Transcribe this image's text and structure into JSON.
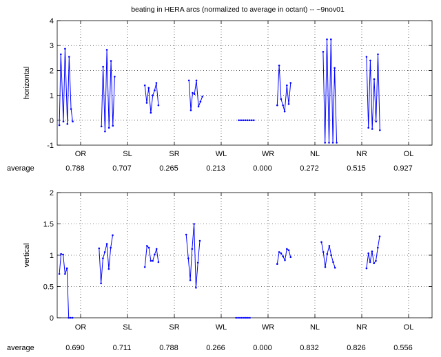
{
  "title": "beating in HERA arcs (normalized to average in octant) -- ~9nov01",
  "series_color": "#0000ff",
  "chart_data": [
    {
      "type": "line",
      "ylabel": "horizontal",
      "ylim": [
        -1,
        4
      ],
      "yticks": [
        -1,
        0,
        1,
        2,
        3,
        4
      ],
      "grid": true,
      "xlim": [
        0.5,
        8.5
      ],
      "categories": [
        "OR",
        "SL",
        "SR",
        "WL",
        "WR",
        "NL",
        "NR",
        "OL"
      ],
      "average_label": "average",
      "averages": [
        "0.788",
        "0.707",
        "0.265",
        "0.213",
        "0.000",
        "0.272",
        "0.515",
        "0.927"
      ],
      "segments": [
        [
          [
            0.545,
            -0.2
          ],
          [
            0.578,
            2.65
          ],
          [
            0.632,
            -0.05
          ],
          [
            0.668,
            2.87
          ],
          [
            0.718,
            -0.15
          ],
          [
            0.755,
            2.55
          ],
          [
            0.796,
            0.45
          ],
          [
            0.831,
            -0.05
          ]
        ],
        [
          [
            1.444,
            -0.25
          ],
          [
            1.48,
            2.15
          ],
          [
            1.52,
            -0.45
          ],
          [
            1.561,
            2.83
          ],
          [
            1.606,
            -0.3
          ],
          [
            1.649,
            2.38
          ],
          [
            1.688,
            -0.22
          ],
          [
            1.727,
            1.75
          ]
        ],
        [
          [
            2.371,
            1.4
          ],
          [
            2.412,
            0.7
          ],
          [
            2.453,
            1.3
          ],
          [
            2.498,
            0.3
          ],
          [
            2.539,
            1.0
          ],
          [
            2.58,
            1.2
          ],
          [
            2.616,
            1.5
          ],
          [
            2.661,
            0.6
          ]
        ],
        [
          [
            3.312,
            1.6
          ],
          [
            3.353,
            0.4
          ],
          [
            3.389,
            1.1
          ],
          [
            3.43,
            1.05
          ],
          [
            3.471,
            1.6
          ],
          [
            3.516,
            0.55
          ],
          [
            3.557,
            0.75
          ],
          [
            3.598,
            0.95
          ]
        ],
        [
          [
            4.376,
            0
          ],
          [
            4.424,
            0
          ],
          [
            4.469,
            0
          ],
          [
            4.514,
            0
          ],
          [
            4.559,
            0
          ],
          [
            4.605,
            0
          ],
          [
            4.65,
            0
          ],
          [
            4.695,
            0
          ]
        ],
        [
          [
            5.196,
            0.6
          ],
          [
            5.237,
            2.2
          ],
          [
            5.278,
            0.85
          ],
          [
            5.319,
            0.6
          ],
          [
            5.355,
            0.35
          ],
          [
            5.401,
            1.4
          ],
          [
            5.441,
            0.65
          ],
          [
            5.482,
            1.5
          ]
        ],
        [
          [
            6.175,
            2.75
          ],
          [
            6.216,
            -0.9
          ],
          [
            6.257,
            3.25
          ],
          [
            6.302,
            -0.9
          ],
          [
            6.343,
            3.25
          ],
          [
            6.384,
            -0.9
          ],
          [
            6.42,
            2.1
          ],
          [
            6.465,
            -0.9
          ]
        ],
        [
          [
            7.101,
            2.55
          ],
          [
            7.142,
            -0.3
          ],
          [
            7.183,
            2.4
          ],
          [
            7.223,
            -0.35
          ],
          [
            7.264,
            1.65
          ],
          [
            7.305,
            -0.05
          ],
          [
            7.346,
            2.65
          ],
          [
            7.387,
            -0.4
          ]
        ]
      ]
    },
    {
      "type": "line",
      "ylabel": "vertical",
      "ylim": [
        0,
        2
      ],
      "yticks": [
        0,
        0.5,
        1,
        1.5,
        2
      ],
      "grid": true,
      "xlim": [
        0.5,
        8.5
      ],
      "categories": [
        "OR",
        "SL",
        "SR",
        "WL",
        "WR",
        "NL",
        "NR",
        "OL"
      ],
      "average_label": "average",
      "averages": [
        "0.690",
        "0.711",
        "0.788",
        "0.266",
        "0.000",
        "0.832",
        "0.826",
        "0.556"
      ],
      "segments": [
        [
          [
            0.545,
            0.7
          ],
          [
            0.582,
            1.02
          ],
          [
            0.627,
            1.01
          ],
          [
            0.668,
            0.7
          ],
          [
            0.709,
            0.79
          ],
          [
            0.745,
            0
          ],
          [
            0.786,
            0
          ],
          [
            0.827,
            0
          ]
        ],
        [
          [
            1.394,
            1.11
          ],
          [
            1.435,
            0.55
          ],
          [
            1.476,
            0.95
          ],
          [
            1.516,
            1.05
          ],
          [
            1.561,
            1.18
          ],
          [
            1.602,
            0.78
          ],
          [
            1.643,
            1.12
          ],
          [
            1.684,
            1.32
          ]
        ],
        [
          [
            2.371,
            0.81
          ],
          [
            2.416,
            1.15
          ],
          [
            2.457,
            1.12
          ],
          [
            2.498,
            0.91
          ],
          [
            2.539,
            0.91
          ],
          [
            2.58,
            1.01
          ],
          [
            2.621,
            1.1
          ],
          [
            2.661,
            0.89
          ]
        ],
        [
          [
            3.253,
            1.33
          ],
          [
            3.298,
            0.95
          ],
          [
            3.339,
            0.6
          ],
          [
            3.38,
            1.1
          ],
          [
            3.421,
            1.5
          ],
          [
            3.462,
            0.48
          ],
          [
            3.503,
            0.88
          ],
          [
            3.544,
            1.23
          ]
        ],
        [
          [
            4.319,
            0
          ],
          [
            4.36,
            0
          ],
          [
            4.401,
            0
          ],
          [
            4.442,
            0
          ],
          [
            4.487,
            0
          ],
          [
            4.528,
            0
          ],
          [
            4.569,
            0
          ],
          [
            4.61,
            0
          ]
        ],
        [
          [
            5.196,
            0.86
          ],
          [
            5.237,
            1.05
          ],
          [
            5.278,
            1.03
          ],
          [
            5.319,
            0.98
          ],
          [
            5.36,
            0.92
          ],
          [
            5.401,
            1.1
          ],
          [
            5.441,
            1.08
          ],
          [
            5.482,
            0.97
          ]
        ],
        [
          [
            6.14,
            1.21
          ],
          [
            6.18,
            1.05
          ],
          [
            6.221,
            0.81
          ],
          [
            6.262,
            1.02
          ],
          [
            6.307,
            1.15
          ],
          [
            6.348,
            1.0
          ],
          [
            6.389,
            0.89
          ],
          [
            6.43,
            0.8
          ]
        ],
        [
          [
            7.101,
            0.79
          ],
          [
            7.142,
            1.03
          ],
          [
            7.178,
            0.89
          ],
          [
            7.219,
            1.06
          ],
          [
            7.26,
            0.87
          ],
          [
            7.301,
            0.91
          ],
          [
            7.342,
            1.12
          ],
          [
            7.382,
            1.3
          ]
        ]
      ]
    }
  ]
}
